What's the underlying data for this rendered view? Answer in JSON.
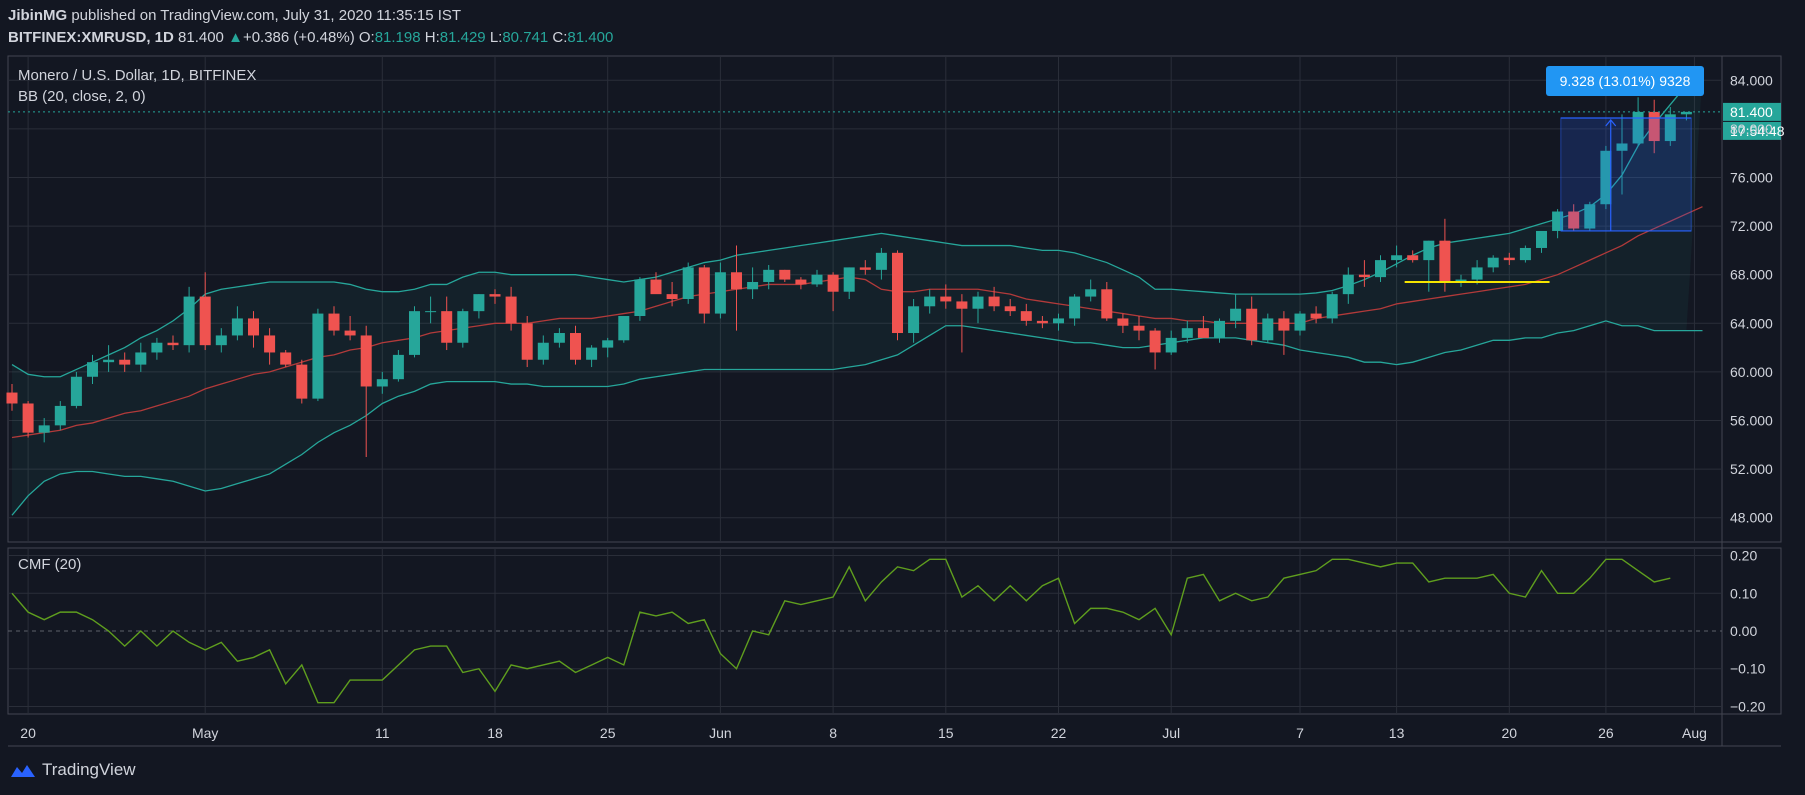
{
  "header": {
    "author": "JibinMG",
    "published_text": "published on TradingView.com, July 31, 2020 11:35:15 IST",
    "symbol": "BITFINEX:XMRUSD, 1D",
    "last": "81.400",
    "change_arrow": "▲",
    "change": "+0.386 (+0.48%)",
    "o_label": "O:",
    "o": "81.198",
    "h_label": "H:",
    "h": "81.429",
    "l_label": "L:",
    "l": "80.741",
    "c_label": "C:",
    "c": "81.400"
  },
  "main_pane": {
    "title": "Monero / U.S. Dollar, 1D, BITFINEX",
    "indicator": "BB (20, close, 2, 0)",
    "price_label": "81.400",
    "countdown_label": "17:54:48",
    "measure_label": "9.328 (13.01%) 9328"
  },
  "cmf_pane": {
    "title": "CMF (20)"
  },
  "footer": {
    "brand": "TradingView"
  },
  "colors": {
    "background": "#131722",
    "up": "#26a69a",
    "down": "#ef5350",
    "bb_band": "#26a69a",
    "bb_basis": "#b23a3a",
    "cmf_line": "#5f9e1e",
    "measure": "#2962ff",
    "support_line": "#f5e500"
  },
  "chart_data": [
    {
      "type": "candlestick",
      "title": "Monero / U.S. Dollar, 1D, BITFINEX",
      "ylim": [
        46,
        86
      ],
      "y_ticks": [
        "84.000",
        "80.000",
        "76.000",
        "72.000",
        "68.000",
        "64.000",
        "60.000",
        "56.000",
        "52.000",
        "48.000"
      ],
      "y_tick_values": [
        84,
        80,
        76,
        72,
        68,
        64,
        60,
        56,
        52,
        48
      ],
      "x_ticks": [
        "20",
        "May",
        "11",
        "18",
        "25",
        "Jun",
        "8",
        "15",
        "22",
        "Jul",
        "7",
        "13",
        "20",
        "26",
        "Aug"
      ],
      "x_tick_index": [
        1,
        12,
        23,
        30,
        37,
        44,
        51,
        58,
        65,
        72,
        80,
        86,
        93,
        99,
        104.5
      ],
      "dates_start": "2020-04-19",
      "ohlc": [
        [
          58.3,
          59.0,
          56.8,
          57.4
        ],
        [
          57.4,
          57.6,
          54.6,
          55.0
        ],
        [
          55.0,
          56.2,
          54.2,
          55.6
        ],
        [
          55.6,
          57.6,
          55.2,
          57.2
        ],
        [
          57.2,
          60.0,
          57.0,
          59.6
        ],
        [
          59.6,
          61.4,
          59.0,
          60.8
        ],
        [
          60.8,
          62.2,
          60.0,
          61.0
        ],
        [
          61.0,
          61.6,
          60.0,
          60.6
        ],
        [
          60.6,
          62.4,
          60.0,
          61.6
        ],
        [
          61.6,
          62.8,
          61.0,
          62.4
        ],
        [
          62.4,
          63.0,
          61.8,
          62.2
        ],
        [
          62.2,
          67.0,
          61.6,
          66.2
        ],
        [
          66.2,
          68.2,
          61.8,
          62.2
        ],
        [
          62.2,
          63.6,
          61.6,
          63.0
        ],
        [
          63.0,
          65.4,
          62.6,
          64.4
        ],
        [
          64.4,
          65.0,
          62.0,
          63.0
        ],
        [
          63.0,
          63.6,
          60.6,
          61.6
        ],
        [
          61.6,
          61.8,
          60.4,
          60.6
        ],
        [
          60.6,
          61.0,
          57.4,
          57.8
        ],
        [
          57.8,
          65.2,
          57.6,
          64.8
        ],
        [
          64.8,
          65.4,
          63.0,
          63.4
        ],
        [
          63.4,
          64.6,
          62.6,
          63.0
        ],
        [
          63.0,
          63.8,
          53.0,
          58.8
        ],
        [
          58.8,
          60.0,
          58.2,
          59.4
        ],
        [
          59.4,
          61.8,
          59.2,
          61.4
        ],
        [
          61.4,
          65.4,
          61.2,
          65.0
        ],
        [
          65.0,
          66.2,
          64.0,
          65.0
        ],
        [
          65.0,
          66.2,
          61.8,
          62.4
        ],
        [
          62.4,
          65.2,
          62.0,
          65.0
        ],
        [
          65.0,
          66.4,
          64.4,
          66.4
        ],
        [
          66.4,
          66.8,
          65.6,
          66.2
        ],
        [
          66.2,
          67.0,
          63.4,
          64.0
        ],
        [
          64.0,
          64.6,
          60.4,
          61.0
        ],
        [
          61.0,
          63.0,
          60.6,
          62.4
        ],
        [
          62.4,
          63.6,
          62.0,
          63.2
        ],
        [
          63.2,
          63.8,
          60.6,
          61.0
        ],
        [
          61.0,
          62.2,
          60.4,
          62.0
        ],
        [
          62.0,
          62.8,
          61.2,
          62.6
        ],
        [
          62.6,
          64.2,
          62.4,
          64.6
        ],
        [
          64.6,
          67.8,
          64.2,
          67.6
        ],
        [
          67.6,
          68.2,
          66.6,
          66.4
        ],
        [
          66.4,
          67.4,
          65.4,
          66.0
        ],
        [
          66.0,
          69.0,
          65.6,
          68.6
        ],
        [
          68.6,
          68.8,
          64.0,
          64.8
        ],
        [
          64.8,
          69.0,
          64.4,
          68.2
        ],
        [
          68.2,
          70.4,
          63.4,
          66.8
        ],
        [
          66.8,
          68.6,
          66.0,
          67.4
        ],
        [
          67.4,
          68.8,
          66.8,
          68.4
        ],
        [
          68.4,
          68.4,
          67.4,
          67.6
        ],
        [
          67.6,
          67.8,
          66.8,
          67.2
        ],
        [
          67.2,
          68.4,
          67.0,
          68.0
        ],
        [
          68.0,
          68.2,
          65.0,
          66.6
        ],
        [
          66.6,
          68.6,
          66.0,
          68.6
        ],
        [
          68.6,
          69.2,
          68.0,
          68.4
        ],
        [
          68.4,
          70.2,
          67.6,
          69.8
        ],
        [
          69.8,
          70.0,
          62.6,
          63.2
        ],
        [
          63.2,
          66.0,
          62.4,
          65.4
        ],
        [
          65.4,
          66.8,
          64.8,
          66.2
        ],
        [
          66.2,
          67.2,
          65.2,
          65.8
        ],
        [
          65.8,
          66.4,
          61.6,
          65.2
        ],
        [
          65.2,
          66.6,
          64.0,
          66.2
        ],
        [
          66.2,
          67.0,
          65.0,
          65.4
        ],
        [
          65.4,
          66.0,
          64.6,
          65.0
        ],
        [
          65.0,
          65.6,
          63.8,
          64.2
        ],
        [
          64.2,
          64.6,
          63.6,
          64.0
        ],
        [
          64.0,
          64.8,
          63.4,
          64.4
        ],
        [
          64.4,
          66.4,
          63.8,
          66.2
        ],
        [
          66.2,
          67.6,
          65.8,
          66.8
        ],
        [
          66.8,
          67.4,
          64.2,
          64.4
        ],
        [
          64.4,
          64.8,
          63.2,
          63.8
        ],
        [
          63.8,
          64.6,
          62.6,
          63.4
        ],
        [
          63.4,
          63.6,
          60.2,
          61.6
        ],
        [
          61.6,
          63.4,
          61.4,
          62.8
        ],
        [
          62.8,
          64.2,
          62.4,
          63.6
        ],
        [
          63.6,
          64.6,
          62.8,
          62.8
        ],
        [
          62.8,
          64.4,
          62.4,
          64.2
        ],
        [
          64.2,
          66.4,
          63.6,
          65.2
        ],
        [
          65.2,
          66.2,
          62.2,
          62.6
        ],
        [
          62.6,
          64.8,
          62.4,
          64.4
        ],
        [
          64.4,
          65.0,
          61.4,
          63.4
        ],
        [
          63.4,
          65.0,
          63.0,
          64.8
        ],
        [
          64.8,
          65.4,
          64.0,
          64.4
        ],
        [
          64.4,
          66.6,
          64.0,
          66.4
        ],
        [
          66.4,
          68.6,
          65.6,
          68.0
        ],
        [
          68.0,
          69.2,
          67.0,
          67.8
        ],
        [
          67.8,
          69.6,
          67.4,
          69.2
        ],
        [
          69.2,
          70.4,
          68.6,
          69.6
        ],
        [
          69.6,
          70.0,
          69.0,
          69.2
        ],
        [
          69.2,
          70.8,
          66.6,
          70.8
        ],
        [
          70.8,
          72.6,
          66.6,
          67.4
        ],
        [
          67.4,
          68.0,
          67.0,
          67.6
        ],
        [
          67.6,
          69.2,
          67.2,
          68.6
        ],
        [
          68.6,
          69.6,
          68.2,
          69.4
        ],
        [
          69.4,
          69.8,
          68.8,
          69.2
        ],
        [
          69.2,
          70.4,
          69.0,
          70.2
        ],
        [
          70.2,
          71.6,
          69.8,
          71.6
        ],
        [
          71.6,
          73.4,
          71.0,
          73.2
        ],
        [
          73.2,
          73.8,
          71.6,
          71.8
        ],
        [
          71.8,
          74.0,
          71.6,
          73.8
        ],
        [
          73.8,
          78.6,
          73.4,
          78.2
        ],
        [
          78.2,
          81.2,
          74.6,
          78.8
        ],
        [
          78.8,
          82.6,
          78.6,
          81.4
        ],
        [
          81.4,
          82.4,
          78.0,
          79.0
        ],
        [
          79.0,
          81.8,
          78.6,
          81.2
        ],
        [
          81.2,
          81.4,
          80.7,
          81.4
        ]
      ],
      "bb_upper": [
        60.6,
        59.8,
        59.6,
        59.6,
        60.2,
        60.8,
        61.4,
        62.0,
        62.8,
        63.4,
        64.2,
        65.2,
        66.4,
        66.8,
        67.0,
        67.2,
        67.4,
        67.4,
        67.4,
        67.4,
        67.4,
        67.2,
        66.8,
        66.6,
        66.6,
        66.8,
        67.2,
        67.2,
        67.8,
        68.2,
        68.2,
        68.0,
        68.0,
        68.0,
        68.0,
        68.0,
        67.8,
        67.6,
        67.4,
        67.6,
        67.8,
        68.2,
        68.6,
        69.0,
        69.2,
        69.6,
        69.8,
        70.0,
        70.2,
        70.4,
        70.6,
        70.8,
        71.0,
        71.2,
        71.4,
        71.2,
        71.0,
        70.8,
        70.6,
        70.4,
        70.4,
        70.4,
        70.4,
        70.2,
        70.0,
        70.0,
        69.8,
        69.4,
        69.0,
        68.4,
        67.8,
        66.8,
        66.8,
        66.7,
        66.6,
        66.5,
        66.4,
        66.4,
        66.4,
        66.4,
        66.4,
        66.5,
        66.7,
        67.1,
        67.6,
        68.2,
        68.9,
        69.6,
        70.2,
        70.6,
        70.8,
        71.0,
        71.2,
        71.4,
        71.8,
        72.2,
        72.6,
        73.0,
        73.6,
        74.6,
        76.2,
        78.6,
        80.4,
        82.0,
        83.6,
        84.6
      ],
      "bb_basis": [
        54.6,
        54.8,
        55.0,
        55.2,
        55.6,
        55.8,
        56.2,
        56.6,
        56.8,
        57.2,
        57.6,
        58.0,
        58.6,
        59.0,
        59.4,
        59.8,
        60.0,
        60.4,
        60.8,
        61.2,
        61.4,
        61.8,
        62.0,
        62.4,
        62.6,
        62.8,
        63.2,
        63.4,
        63.6,
        63.8,
        64.0,
        64.0,
        64.0,
        64.2,
        64.4,
        64.4,
        64.4,
        64.6,
        64.8,
        65.0,
        65.4,
        65.8,
        66.2,
        66.4,
        66.6,
        66.8,
        67.0,
        67.2,
        67.2,
        67.2,
        67.4,
        67.6,
        67.8,
        67.6,
        66.8,
        66.6,
        66.6,
        66.8,
        66.8,
        66.8,
        66.8,
        66.6,
        66.4,
        66.0,
        65.8,
        65.6,
        65.4,
        65.2,
        65.0,
        64.8,
        64.6,
        64.4,
        64.4,
        64.2,
        64.2,
        64.0,
        64.0,
        64.0,
        64.0,
        64.0,
        64.0,
        64.4,
        64.6,
        64.8,
        65.0,
        65.2,
        65.6,
        65.8,
        66.0,
        66.2,
        66.4,
        66.6,
        66.8,
        67.0,
        67.2,
        67.6,
        68.0,
        68.6,
        69.2,
        69.8,
        70.4,
        71.2,
        71.8,
        72.4,
        73.0,
        73.6
      ],
      "bb_lower": [
        48.2,
        49.8,
        51.0,
        51.6,
        51.8,
        51.8,
        51.6,
        51.4,
        51.4,
        51.2,
        51.0,
        50.6,
        50.2,
        50.4,
        50.8,
        51.2,
        51.6,
        52.4,
        53.2,
        54.2,
        55.0,
        55.6,
        56.4,
        57.4,
        58.0,
        58.4,
        59.0,
        59.2,
        59.2,
        59.2,
        59.2,
        59.0,
        59.0,
        58.8,
        58.8,
        58.8,
        58.8,
        58.8,
        59.0,
        59.4,
        59.6,
        59.8,
        60.0,
        60.2,
        60.2,
        60.2,
        60.2,
        60.2,
        60.2,
        60.2,
        60.2,
        60.2,
        60.4,
        60.6,
        61.0,
        61.4,
        62.2,
        63.0,
        63.8,
        63.8,
        63.6,
        63.4,
        63.2,
        63.0,
        62.8,
        62.6,
        62.4,
        62.4,
        62.2,
        62.0,
        62.0,
        62.2,
        62.4,
        62.6,
        62.8,
        62.8,
        62.8,
        62.6,
        62.4,
        62.2,
        61.8,
        61.6,
        61.4,
        61.2,
        60.8,
        60.8,
        60.6,
        60.8,
        61.2,
        61.6,
        61.8,
        62.2,
        62.6,
        62.6,
        62.8,
        62.8,
        63.2,
        63.4,
        63.8,
        64.2,
        63.8,
        63.8,
        63.4,
        63.4,
        63.4,
        63.4
      ]
    },
    {
      "type": "line",
      "title": "CMF (20)",
      "ylim": [
        -0.22,
        0.22
      ],
      "y_ticks": [
        "0.20",
        "0.10",
        "0.00",
        "−0.10",
        "−0.20"
      ],
      "y_tick_values": [
        0.2,
        0.1,
        0.0,
        -0.1,
        -0.2
      ],
      "series": [
        {
          "values": [
            0.1,
            0.05,
            0.03,
            0.05,
            0.05,
            0.03,
            0.0,
            -0.04,
            0.0,
            -0.04,
            0.0,
            -0.03,
            -0.05,
            -0.03,
            -0.08,
            -0.07,
            -0.05,
            -0.14,
            -0.09,
            -0.19,
            -0.19,
            -0.13,
            -0.13,
            -0.13,
            -0.09,
            -0.05,
            -0.04,
            -0.04,
            -0.11,
            -0.1,
            -0.16,
            -0.09,
            -0.1,
            -0.09,
            -0.08,
            -0.11,
            -0.09,
            -0.07,
            -0.09,
            0.05,
            0.04,
            0.05,
            0.02,
            0.03,
            -0.06,
            -0.1,
            0.0,
            -0.01,
            0.08,
            0.07,
            0.08,
            0.09,
            0.17,
            0.08,
            0.13,
            0.17,
            0.16,
            0.19,
            0.19,
            0.09,
            0.12,
            0.08,
            0.12,
            0.08,
            0.12,
            0.14,
            0.02,
            0.06,
            0.06,
            0.05,
            0.03,
            0.06,
            -0.01,
            0.14,
            0.15,
            0.08,
            0.1,
            0.08,
            0.09,
            0.14,
            0.15,
            0.16,
            0.19,
            0.19,
            0.18,
            0.17,
            0.18,
            0.18,
            0.13,
            0.14,
            0.14,
            0.14,
            0.15,
            0.1,
            0.09,
            0.16,
            0.1,
            0.1,
            0.14,
            0.19,
            0.19,
            0.16,
            0.13,
            0.14
          ]
        }
      ]
    }
  ]
}
